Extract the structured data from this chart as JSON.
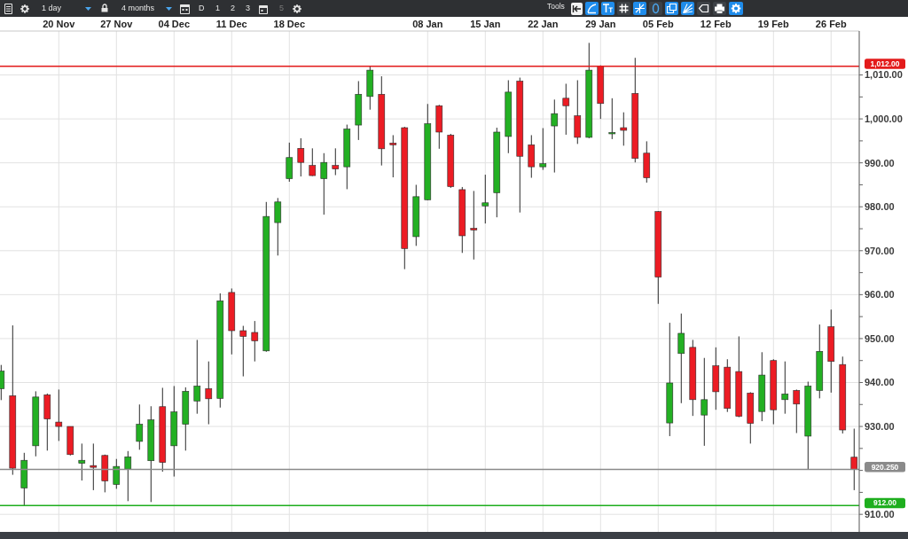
{
  "chart_data": {
    "type": "candlestick",
    "categories": [
      null,
      null,
      null,
      null,
      null,
      "20 Nov",
      null,
      null,
      null,
      null,
      "27 Nov",
      null,
      null,
      null,
      null,
      "04 Dec",
      null,
      null,
      null,
      null,
      "11 Dec",
      null,
      null,
      null,
      null,
      "18 Dec",
      null,
      null,
      null,
      null,
      null,
      null,
      null,
      null,
      null,
      null,
      null,
      "08 Jan",
      null,
      null,
      null,
      null,
      "15 Jan",
      null,
      null,
      null,
      null,
      "22 Jan",
      null,
      null,
      null,
      null,
      "29 Jan",
      null,
      null,
      null,
      null,
      "05 Feb",
      null,
      null,
      null,
      null,
      "12 Feb",
      null,
      null,
      null,
      null,
      "19 Feb",
      null,
      null,
      null,
      null,
      "26 Feb",
      null,
      null
    ],
    "ohlc": [
      [
        938.6,
        944,
        936,
        942.6
      ],
      [
        937,
        953,
        919,
        920.5
      ],
      [
        916,
        924,
        912,
        922.3
      ],
      [
        925.6,
        938,
        923.2,
        936.7
      ],
      [
        937.2,
        937.5,
        924.5,
        931.7
      ],
      [
        931,
        938.4,
        926.7,
        930
      ],
      [
        930,
        930,
        923.4,
        923.6
      ],
      [
        921.6,
        926.1,
        917.7,
        922.3
      ],
      [
        921.1,
        926.1,
        915.5,
        920.7
      ],
      [
        923.4,
        923.6,
        915,
        917.6
      ],
      [
        916.8,
        922.6,
        915.8,
        920.9
      ],
      [
        920.3,
        924.4,
        913,
        923.1
      ],
      [
        926.6,
        935,
        924.7,
        930.5
      ],
      [
        922.2,
        934.6,
        912.8,
        931.5
      ],
      [
        934.5,
        938.8,
        919.7,
        921.8
      ],
      [
        925.6,
        939.2,
        918.6,
        933.3
      ],
      [
        930.5,
        938.9,
        924.5,
        938
      ],
      [
        935.8,
        949.7,
        932.9,
        939.2
      ],
      [
        938.6,
        944.8,
        930.5,
        936.3
      ],
      [
        936.4,
        960.3,
        934.3,
        958.6
      ],
      [
        960.5,
        961.4,
        946.4,
        951.8
      ],
      [
        951.8,
        952.9,
        941.4,
        950.5
      ],
      [
        951.4,
        954,
        944.8,
        949.5
      ],
      [
        947.2,
        981.1,
        947,
        977.8
      ],
      [
        976.4,
        982,
        968.9,
        981.1
      ],
      [
        986.4,
        994.6,
        985.7,
        991.2
      ],
      [
        993.3,
        995.6,
        986.9,
        990.1
      ],
      [
        989.4,
        993.3,
        987,
        987.1
      ],
      [
        986.4,
        992.2,
        978.2,
        990.1
      ],
      [
        989.4,
        993.3,
        987.2,
        988.6
      ],
      [
        989.1,
        998.7,
        984,
        997.7
      ],
      [
        998.6,
        1008.6,
        995.2,
        1005.6
      ],
      [
        1005.1,
        1012,
        1002.1,
        1011.1
      ],
      [
        1005.6,
        1009.7,
        989.4,
        993.2
      ],
      [
        994.5,
        996.3,
        986.7,
        994.1
      ],
      [
        998,
        998.2,
        965.8,
        970.5
      ],
      [
        973.2,
        985,
        971.1,
        982.3
      ],
      [
        981.6,
        1003.4,
        981.5,
        998.9
      ],
      [
        1003,
        1003.2,
        993.2,
        997
      ],
      [
        996.3,
        996.6,
        984.3,
        984.6
      ],
      [
        983.9,
        984.5,
        969.5,
        973.4
      ],
      [
        975.1,
        983.6,
        968,
        974.7
      ],
      [
        980.2,
        987.3,
        976.2,
        980.9
      ],
      [
        983.2,
        998,
        977.6,
        997
      ],
      [
        996,
        1008.8,
        992.2,
        1006.1
      ],
      [
        1008.6,
        1009.4,
        978.7,
        991.5
      ],
      [
        994.1,
        996.3,
        986.6,
        989.1
      ],
      [
        989.1,
        997.9,
        988.4,
        989.8
      ],
      [
        998.4,
        1004.4,
        987.8,
        1001.2
      ],
      [
        1004.7,
        1008,
        996.4,
        1003
      ],
      [
        1000.7,
        1008.8,
        994.3,
        995.8
      ],
      [
        995.8,
        1017.3,
        995.6,
        1011.1
      ],
      [
        1012,
        1012.2,
        1000,
        1003.5
      ],
      [
        996.6,
        1004.7,
        995.4,
        996.9
      ],
      [
        998,
        1001.5,
        993.9,
        997.4
      ],
      [
        1005.8,
        1013.9,
        990.1,
        991
      ],
      [
        992.2,
        994.9,
        985.5,
        986.6
      ],
      [
        978.9,
        979,
        957.9,
        964
      ],
      [
        930.8,
        953.6,
        927.8,
        939.9
      ],
      [
        946.6,
        955.7,
        935.3,
        951.2
      ],
      [
        948,
        949.7,
        932.4,
        936.1
      ],
      [
        932.6,
        945.6,
        925.6,
        936.1
      ],
      [
        943.8,
        948,
        933.8,
        937.9
      ],
      [
        943.5,
        945.3,
        933.3,
        934.1
      ],
      [
        942.5,
        950.5,
        932.1,
        932.3
      ],
      [
        937.6,
        937.8,
        926.1,
        930.7
      ],
      [
        933.4,
        946.9,
        931.2,
        941.7
      ],
      [
        945,
        945.3,
        930.5,
        933.8
      ],
      [
        936.1,
        944.8,
        932.9,
        937.4
      ],
      [
        938.2,
        938.4,
        928.5,
        935.1
      ],
      [
        927.8,
        940.2,
        920.3,
        939.2
      ],
      [
        938.2,
        953.2,
        936.4,
        947.1
      ],
      [
        952.7,
        956.6,
        937.7,
        944.8
      ],
      [
        944.1,
        945.9,
        928.4,
        929.2
      ],
      [
        923,
        929.5,
        915.5,
        920.25
      ]
    ],
    "colors": [
      "#23b023",
      "#ec1c24",
      "#23b023",
      "#23b023",
      "#ec1c24",
      "#ec1c24",
      "#ec1c24",
      "#23b023",
      "#ec1c24",
      "#ec1c24",
      "#23b023",
      "#23b023",
      "#23b023",
      "#23b023",
      "#ec1c24",
      "#23b023",
      "#23b023",
      "#23b023",
      "#ec1c24",
      "#23b023",
      "#ec1c24",
      "#ec1c24",
      "#ec1c24",
      "#23b023",
      "#23b023",
      "#23b023",
      "#ec1c24",
      "#ec1c24",
      "#23b023",
      "#ec1c24",
      "#23b023",
      "#23b023",
      "#23b023",
      "#ec1c24",
      "#ec1c24",
      "#ec1c24",
      "#23b023",
      "#23b023",
      "#ec1c24",
      "#ec1c24",
      "#ec1c24",
      "#ec1c24",
      "#23b023",
      "#23b023",
      "#23b023",
      "#ec1c24",
      "#ec1c24",
      "#23b023",
      "#23b023",
      "#ec1c24",
      "#ec1c24",
      "#23b023",
      "#ec1c24",
      "#23b023",
      "#ec1c24",
      "#ec1c24",
      "#ec1c24",
      "#ec1c24",
      "#23b023",
      "#23b023",
      "#ec1c24",
      "#23b023",
      "#ec1c24",
      "#ec1c24",
      "#ec1c24",
      "#ec1c24",
      "#23b023",
      "#ec1c24",
      "#23b023",
      "#ec1c24",
      "#23b023",
      "#23b023",
      "#ec1c24",
      "#ec1c24",
      "#ec1c24"
    ],
    "ylim": [
      906,
      1020
    ],
    "yticks": [
      {
        "value": 910,
        "label": "910.00"
      },
      {
        "value": 915,
        "label": null
      },
      {
        "value": 920,
        "label": null
      },
      {
        "value": 925,
        "label": null
      },
      {
        "value": 930,
        "label": "930.00"
      },
      {
        "value": 935,
        "label": null
      },
      {
        "value": 940,
        "label": "940.00"
      },
      {
        "value": 945,
        "label": null
      },
      {
        "value": 950,
        "label": "950.00"
      },
      {
        "value": 955,
        "label": null
      },
      {
        "value": 960,
        "label": "960.00"
      },
      {
        "value": 965,
        "label": null
      },
      {
        "value": 970,
        "label": "970.00"
      },
      {
        "value": 975,
        "label": null
      },
      {
        "value": 980,
        "label": "980.00"
      },
      {
        "value": 985,
        "label": null
      },
      {
        "value": 990,
        "label": "990.00"
      },
      {
        "value": 995,
        "label": null
      },
      {
        "value": 1000,
        "label": "1,000.00"
      },
      {
        "value": 1005,
        "label": null
      },
      {
        "value": 1010,
        "label": "1,010.00"
      }
    ],
    "grid": true,
    "ref_lines": [
      {
        "axis": "y",
        "value": 1012,
        "label": "1,012.00",
        "color": "#e31b1b"
      },
      {
        "axis": "y",
        "value": 912,
        "label": "912.00",
        "color": "#1eae1e"
      },
      {
        "axis": "y",
        "value": 920.25,
        "label": "920.250",
        "color": "#8a8a8a"
      }
    ],
    "annotations": [
      "1 day",
      "4 months",
      "D",
      "1",
      "2",
      "3",
      "5",
      "Tools"
    ]
  }
}
